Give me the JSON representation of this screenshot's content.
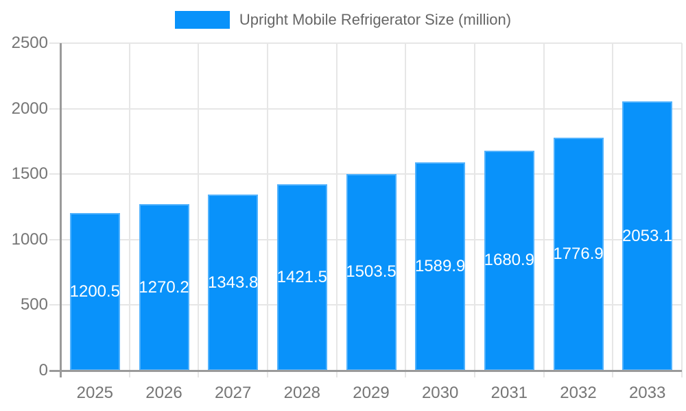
{
  "legend": {
    "label": "Upright Mobile Refrigerator Size (million)"
  },
  "chart_data": {
    "type": "bar",
    "title": "",
    "xlabel": "",
    "ylabel": "",
    "series_name": "Upright Mobile Refrigerator Size (million)",
    "categories": [
      "2025",
      "2026",
      "2027",
      "2028",
      "2029",
      "2030",
      "2031",
      "2032",
      "2033"
    ],
    "values": [
      1200.5,
      1270.2,
      1343.8,
      1421.5,
      1503.5,
      1589.9,
      1680.9,
      1776.9,
      2053.1
    ],
    "value_labels": [
      "1200.5",
      "1270.2",
      "1343.8",
      "1421.5",
      "1503.5",
      "1589.9",
      "1680.9",
      "1776.9",
      "2053.1"
    ],
    "ylim": [
      0,
      2500
    ],
    "yticks": [
      0,
      500,
      1000,
      1500,
      2000,
      2500
    ],
    "ytick_labels": [
      "0",
      "500",
      "1000",
      "1500",
      "2000",
      "2500"
    ],
    "grid": true,
    "legend_position": "top"
  },
  "colors": {
    "bar_fill": "#0992fa",
    "bar_border": "#51b2fd",
    "grid": "#e6e6e6",
    "axis": "#9a9a9a",
    "tick_text": "#757575",
    "legend_text": "#666666",
    "bar_label_text": "#ffffff",
    "background": "#ffffff"
  }
}
